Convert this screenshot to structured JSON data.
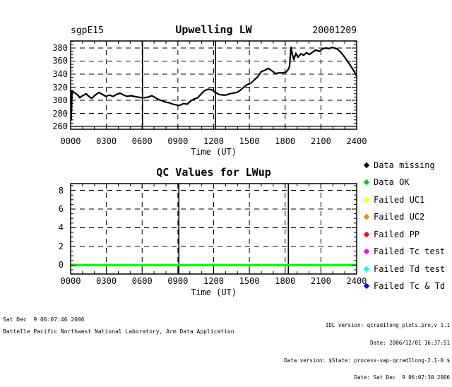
{
  "header": {
    "site": "sgpE15",
    "date": "20001209"
  },
  "chart_data": [
    {
      "type": "line",
      "title": "Upwelling LW",
      "xlabel": "Time (UT)",
      "x_tick_labels": [
        "0000",
        "0300",
        "0600",
        "0900",
        "1200",
        "1500",
        "1800",
        "2100",
        "2400"
      ],
      "x_tick_hours": [
        0,
        3,
        6,
        9,
        12,
        15,
        18,
        21,
        24
      ],
      "x_range_hours": [
        0,
        24
      ],
      "x_minor_step_hours": 1,
      "y_tick_labels": [
        "260",
        "280",
        "300",
        "320",
        "340",
        "360",
        "380"
      ],
      "y_tick_values": [
        260,
        280,
        300,
        320,
        340,
        360,
        380
      ],
      "y_range": [
        255.7,
        390.8
      ],
      "y_minor_step": 5,
      "grid_style": "dashed",
      "solid_gridline_values": [
        260
      ],
      "missing_data_vlines_hours": [
        6.03,
        12.15
      ],
      "series": [
        {
          "name": "upwelling-lw-trace",
          "color": "#000000",
          "points": [
            [
              0,
              316
            ],
            [
              0.05,
              270
            ],
            [
              0.12,
              314
            ],
            [
              0.3,
              312
            ],
            [
              0.6,
              308
            ],
            [
              0.77,
              304
            ],
            [
              1.0,
              307
            ],
            [
              1.3,
              310
            ],
            [
              1.6,
              305
            ],
            [
              1.78,
              303
            ],
            [
              2.07,
              308
            ],
            [
              2.37,
              312
            ],
            [
              2.67,
              309
            ],
            [
              2.96,
              306
            ],
            [
              3.26,
              308
            ],
            [
              3.56,
              306
            ],
            [
              3.85,
              309
            ],
            [
              4.15,
              311
            ],
            [
              4.44,
              308
            ],
            [
              4.74,
              306
            ],
            [
              5.04,
              307
            ],
            [
              5.33,
              306
            ],
            [
              5.63,
              305
            ],
            [
              5.93,
              304
            ],
            [
              6.22,
              304
            ],
            [
              6.52,
              305
            ],
            [
              6.81,
              307
            ],
            [
              7.11,
              304
            ],
            [
              7.41,
              301
            ],
            [
              7.7,
              299
            ],
            [
              8.0,
              297
            ],
            [
              8.3,
              296
            ],
            [
              8.59,
              294
            ],
            [
              8.89,
              293
            ],
            [
              9.07,
              292
            ],
            [
              9.24,
              293
            ],
            [
              9.48,
              295
            ],
            [
              9.78,
              294
            ],
            [
              10.07,
              299
            ],
            [
              10.37,
              302
            ],
            [
              10.67,
              304
            ],
            [
              10.96,
              310
            ],
            [
              11.26,
              315
            ],
            [
              11.56,
              317
            ],
            [
              11.85,
              316
            ],
            [
              12.15,
              312
            ],
            [
              12.44,
              309
            ],
            [
              12.74,
              308
            ],
            [
              13.04,
              308
            ],
            [
              13.33,
              310
            ],
            [
              13.63,
              311
            ],
            [
              13.93,
              312
            ],
            [
              14.22,
              315
            ],
            [
              14.52,
              320
            ],
            [
              14.81,
              324
            ],
            [
              15.11,
              326
            ],
            [
              15.41,
              331
            ],
            [
              15.7,
              336
            ],
            [
              16.0,
              344
            ],
            [
              16.3,
              346
            ],
            [
              16.59,
              349
            ],
            [
              16.89,
              345
            ],
            [
              17.19,
              341
            ],
            [
              17.48,
              342
            ],
            [
              17.78,
              342
            ],
            [
              18.07,
              343
            ],
            [
              18.25,
              347
            ],
            [
              18.37,
              352
            ],
            [
              18.49,
              381
            ],
            [
              18.61,
              370
            ],
            [
              18.73,
              362
            ],
            [
              18.9,
              372
            ],
            [
              19.08,
              366
            ],
            [
              19.32,
              371
            ],
            [
              19.56,
              369
            ],
            [
              19.79,
              373
            ],
            [
              20.03,
              370
            ],
            [
              20.33,
              374
            ],
            [
              20.56,
              377
            ],
            [
              20.86,
              375
            ],
            [
              21.16,
              379
            ],
            [
              21.45,
              380
            ],
            [
              21.69,
              379
            ],
            [
              21.93,
              381
            ],
            [
              22.16,
              380
            ],
            [
              22.4,
              378
            ],
            [
              22.7,
              373
            ],
            [
              22.99,
              366
            ],
            [
              23.29,
              358
            ],
            [
              23.59,
              350
            ],
            [
              23.82,
              343
            ],
            [
              24,
              337
            ]
          ]
        }
      ]
    },
    {
      "type": "line",
      "title": "QC Values for LWup",
      "xlabel": "Time (UT)",
      "x_tick_labels": [
        "0000",
        "0300",
        "0600",
        "0900",
        "1200",
        "1500",
        "1800",
        "2100",
        "2400"
      ],
      "x_tick_hours": [
        0,
        3,
        6,
        9,
        12,
        15,
        18,
        21,
        24
      ],
      "x_range_hours": [
        0,
        24
      ],
      "x_minor_step_hours": 1,
      "y_tick_labels": [
        "0",
        "2",
        "4",
        "6",
        "8"
      ],
      "y_tick_values": [
        0,
        2,
        4,
        6,
        8
      ],
      "y_range": [
        -0.95,
        8.72
      ],
      "y_minor_step": 0.5,
      "grid_style": "dashed",
      "solid_gridline_values": [],
      "missing_data_vlines_hours": [
        9.08,
        18.27
      ],
      "series": [
        {
          "name": "qc-flag-data-ok",
          "color": "#00FF00",
          "points": [
            [
              0,
              0
            ],
            [
              24,
              0
            ]
          ]
        }
      ]
    }
  ],
  "legend": {
    "items": [
      {
        "label": "Data missing",
        "color": "#000000"
      },
      {
        "label": "Data OK",
        "color": "#00CC00"
      },
      {
        "label": "Failed UC1",
        "color": "#FFFF00"
      },
      {
        "label": "Failed UC2",
        "color": "#FF8000"
      },
      {
        "label": "Failed PP",
        "color": "#FF0000"
      },
      {
        "label": "Failed Tc test",
        "color": "#FF00FF"
      },
      {
        "label": "Failed Td test",
        "color": "#00FFFF"
      },
      {
        "label": "Failed Tc & Td",
        "color": "#0000FF"
      }
    ]
  },
  "footer": {
    "left_lines": [
      "Sat Dec  9 06:07:46 2006",
      "Battelle Pacific Northwest National Laboratory, Arm Data Application"
    ],
    "right_lines": [
      "IDL version: qcrad1long_plots.pro,v 1.1",
      "Date: 2006/12/01 16:37:51",
      "Data version: $State: process-vap-qcrad1long-2.1-0 $",
      "Date: Sat Dec  9 06:07:30 2006"
    ]
  }
}
